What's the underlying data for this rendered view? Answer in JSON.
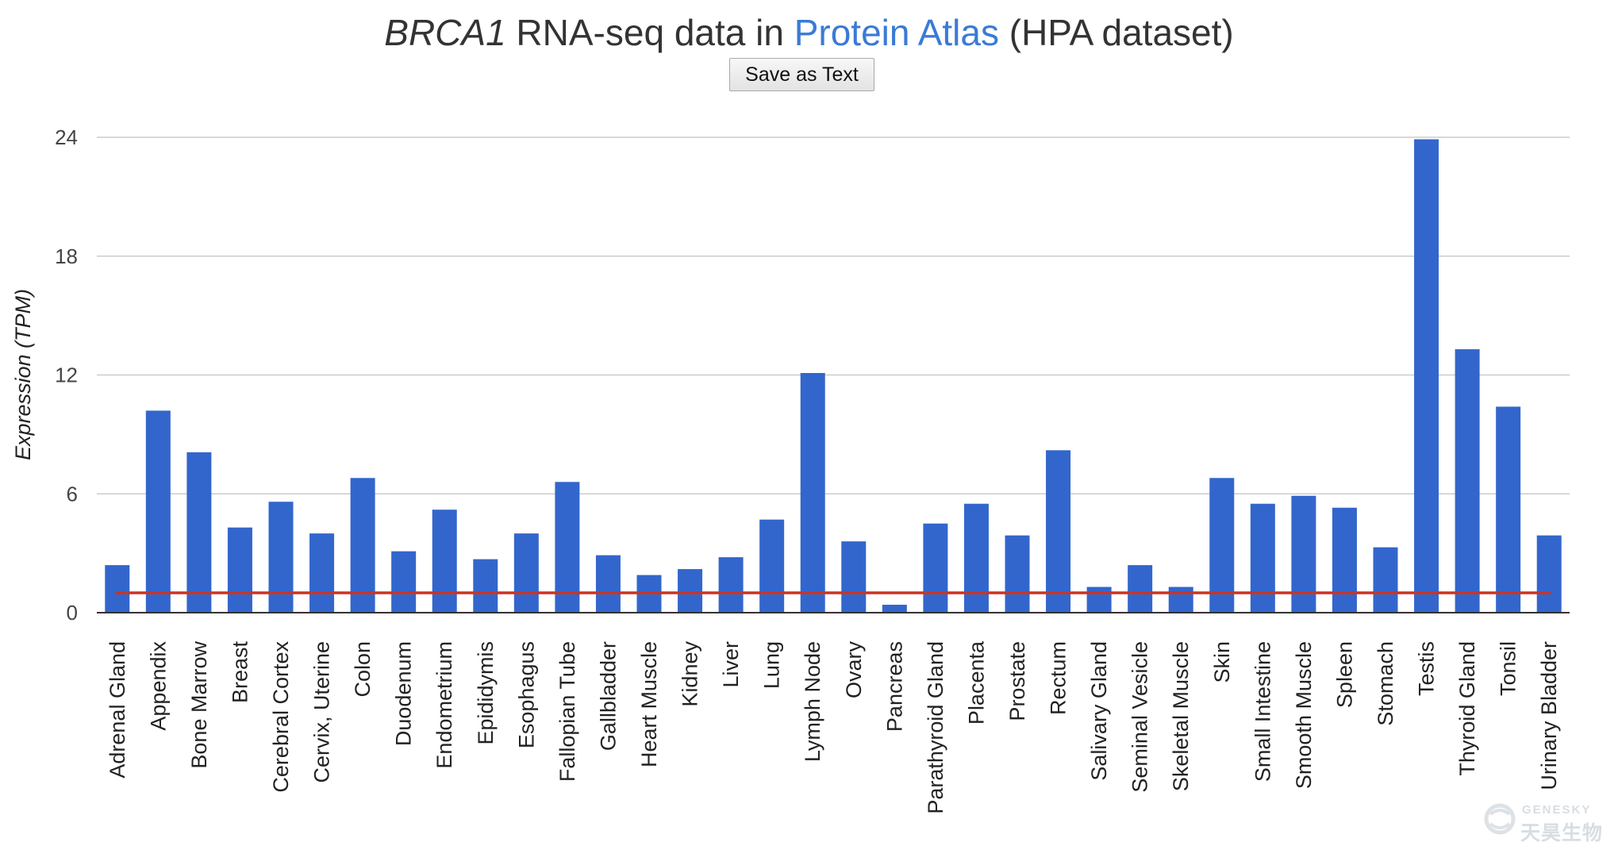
{
  "title": {
    "gene": "BRCA1",
    "middle": " RNA-seq data in ",
    "link": "Protein Atlas",
    "suffix": " (HPA dataset)"
  },
  "save_button": {
    "label": "Save as Text"
  },
  "watermark": {
    "en": "GENESKY",
    "cn": "天昊生物"
  },
  "chart_data": {
    "type": "bar",
    "title": "BRCA1 RNA-seq data in Protein Atlas (HPA dataset)",
    "ylabel": "Expression (TPM)",
    "xlabel": "",
    "ylim": [
      0,
      24
    ],
    "yticks": [
      0,
      6,
      12,
      18,
      24
    ],
    "grid": true,
    "bar_color": "#3366cc",
    "threshold": {
      "value": 1,
      "color": "#cc3322"
    },
    "categories": [
      "Adrenal Gland",
      "Appendix",
      "Bone Marrow",
      "Breast",
      "Cerebral Cortex",
      "Cervix, Uterine",
      "Colon",
      "Duodenum",
      "Endometrium",
      "Epididymis",
      "Esophagus",
      "Fallopian Tube",
      "Gallbladder",
      "Heart Muscle",
      "Kidney",
      "Liver",
      "Lung",
      "Lymph Node",
      "Ovary",
      "Pancreas",
      "Parathyroid Gland",
      "Placenta",
      "Prostate",
      "Rectum",
      "Salivary Gland",
      "Seminal Vesicle",
      "Skeletal Muscle",
      "Skin",
      "Small Intestine",
      "Smooth Muscle",
      "Spleen",
      "Stomach",
      "Testis",
      "Thyroid Gland",
      "Tonsil",
      "Urinary Bladder"
    ],
    "values": [
      2.4,
      10.2,
      8.1,
      4.3,
      5.6,
      4.0,
      6.8,
      3.1,
      5.2,
      2.7,
      4.0,
      6.6,
      2.9,
      1.9,
      2.2,
      2.8,
      4.7,
      12.1,
      3.6,
      0.4,
      4.5,
      5.5,
      3.9,
      8.2,
      1.3,
      2.4,
      1.3,
      6.8,
      5.5,
      5.9,
      5.3,
      3.3,
      23.9,
      13.3,
      10.4,
      3.9
    ]
  }
}
